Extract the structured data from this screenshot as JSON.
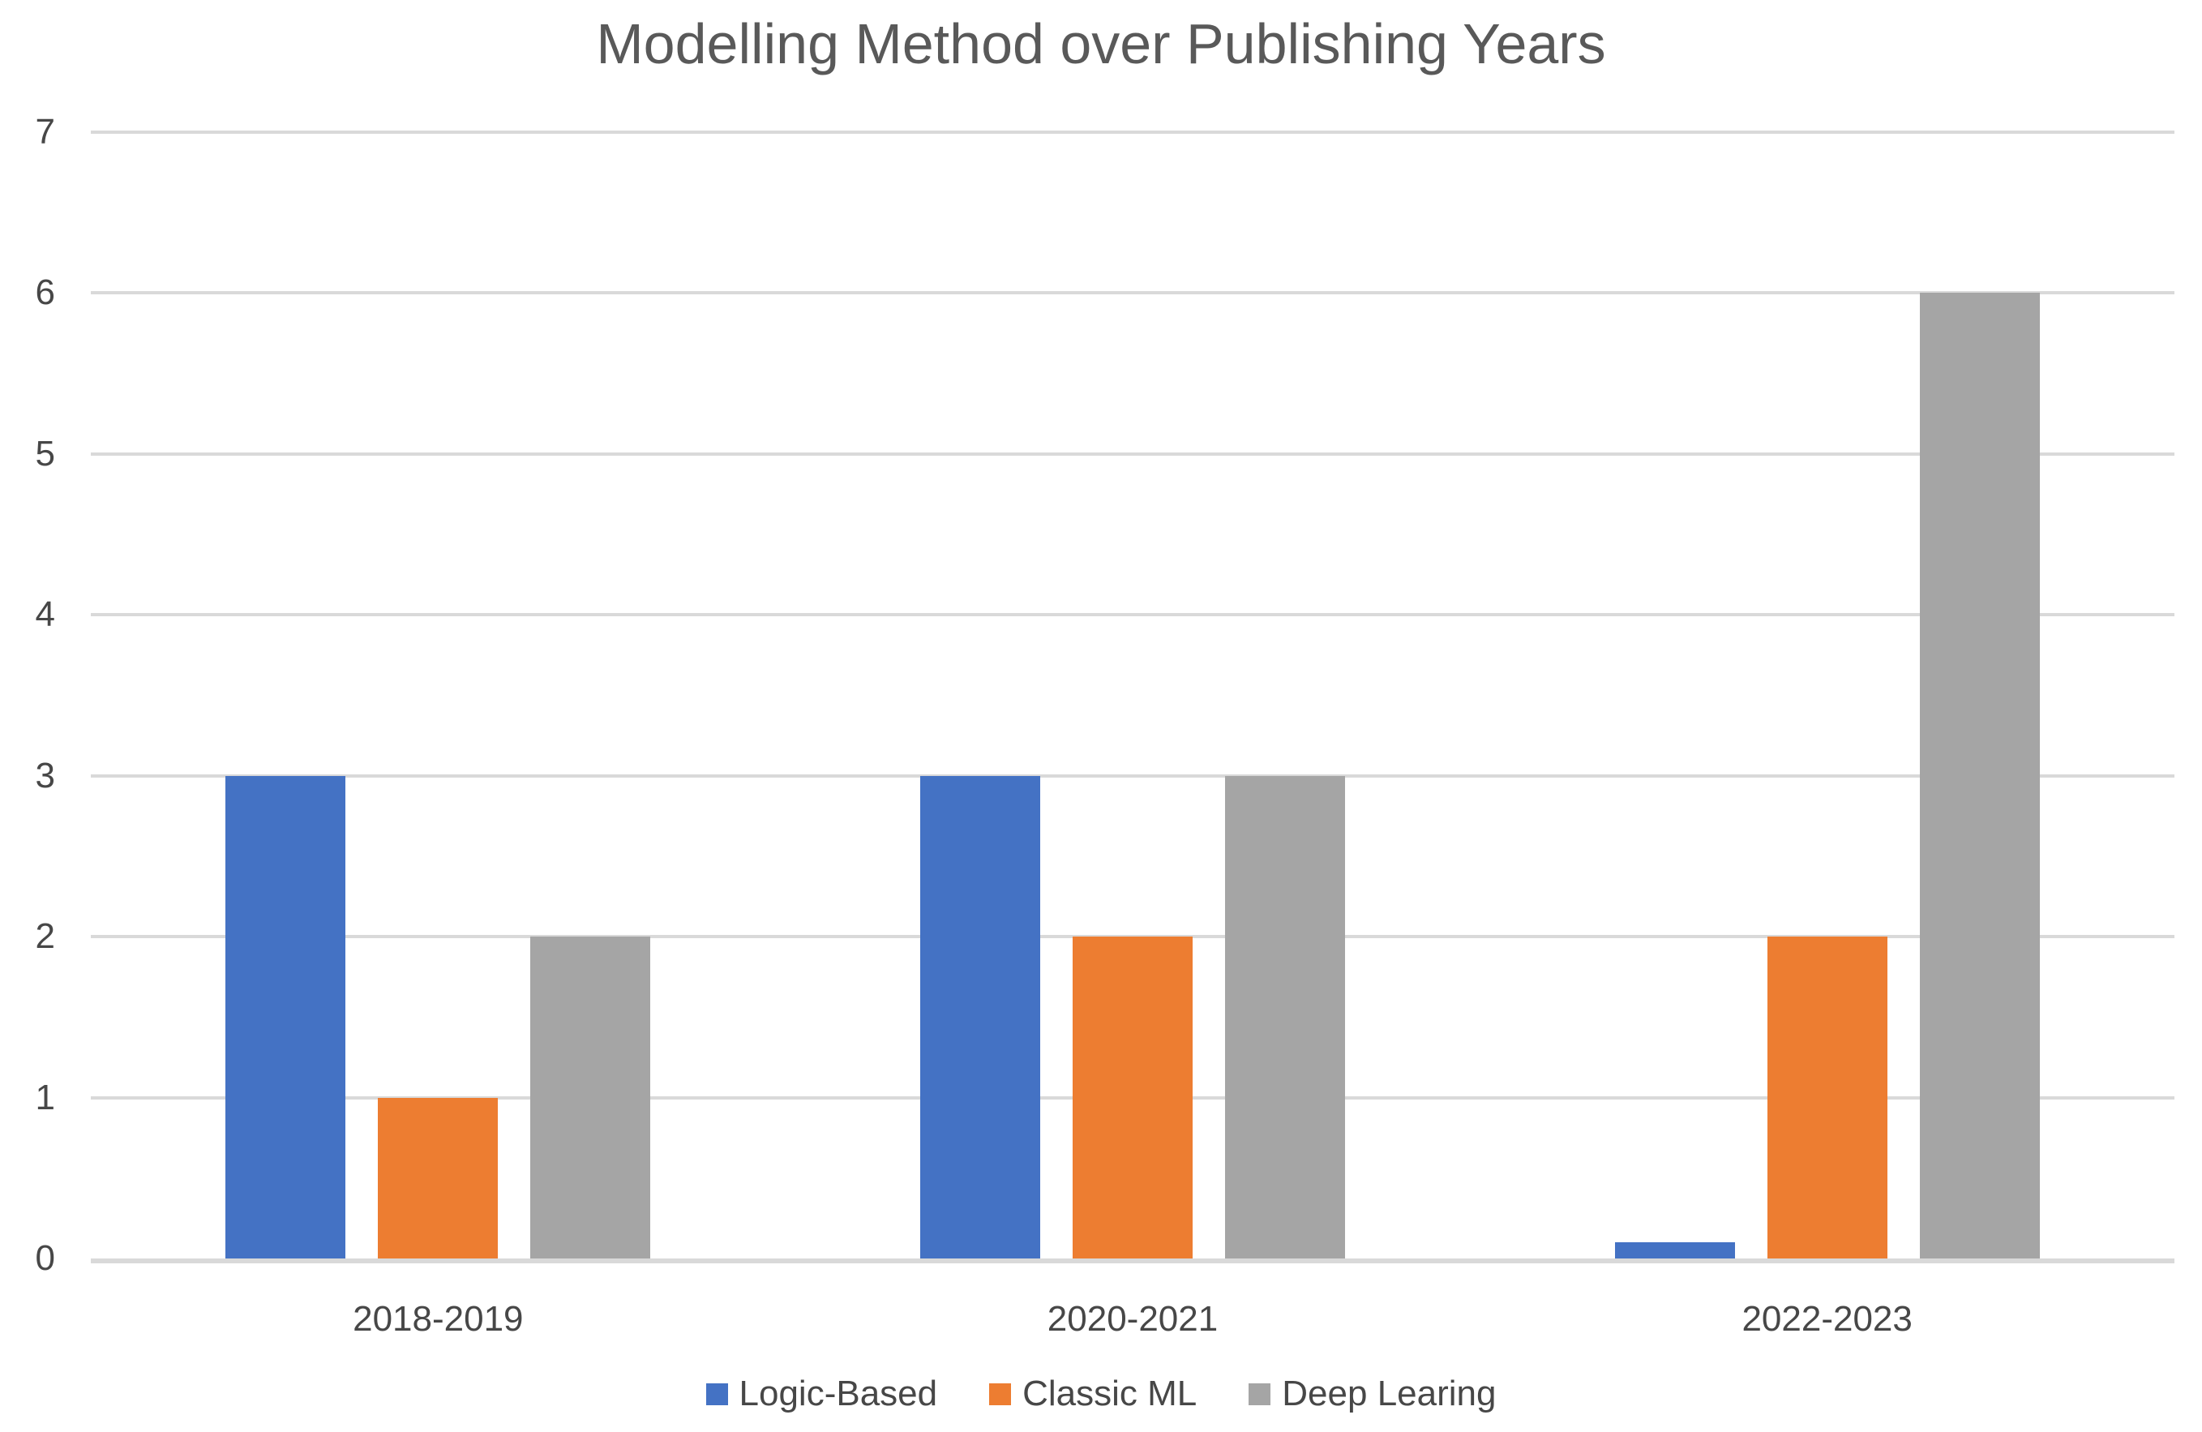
{
  "chart_data": {
    "type": "bar",
    "title": "Modelling Method over Publishing Years",
    "categories": [
      "2018-2019",
      "2020-2021",
      "2022-2023"
    ],
    "series": [
      {
        "name": "Logic-Based",
        "color": "#4472C4",
        "values": [
          3,
          3,
          0.1
        ]
      },
      {
        "name": "Classic ML",
        "color": "#ED7D31",
        "values": [
          1,
          2,
          2
        ]
      },
      {
        "name": "Deep Learing",
        "color": "#A5A5A5",
        "values": [
          2,
          3,
          6
        ]
      }
    ],
    "xlabel": "",
    "ylabel": "",
    "ylim": [
      0,
      7
    ],
    "yticks": [
      0,
      1,
      2,
      3,
      4,
      5,
      6,
      7
    ],
    "grid": true,
    "legend_position": "bottom"
  },
  "colors": {
    "title_text": "#595959",
    "axis_text": "#474747",
    "gridline": "#D9D9D9",
    "axis_line": "#D9D9D9",
    "background": "#FFFFFF"
  }
}
